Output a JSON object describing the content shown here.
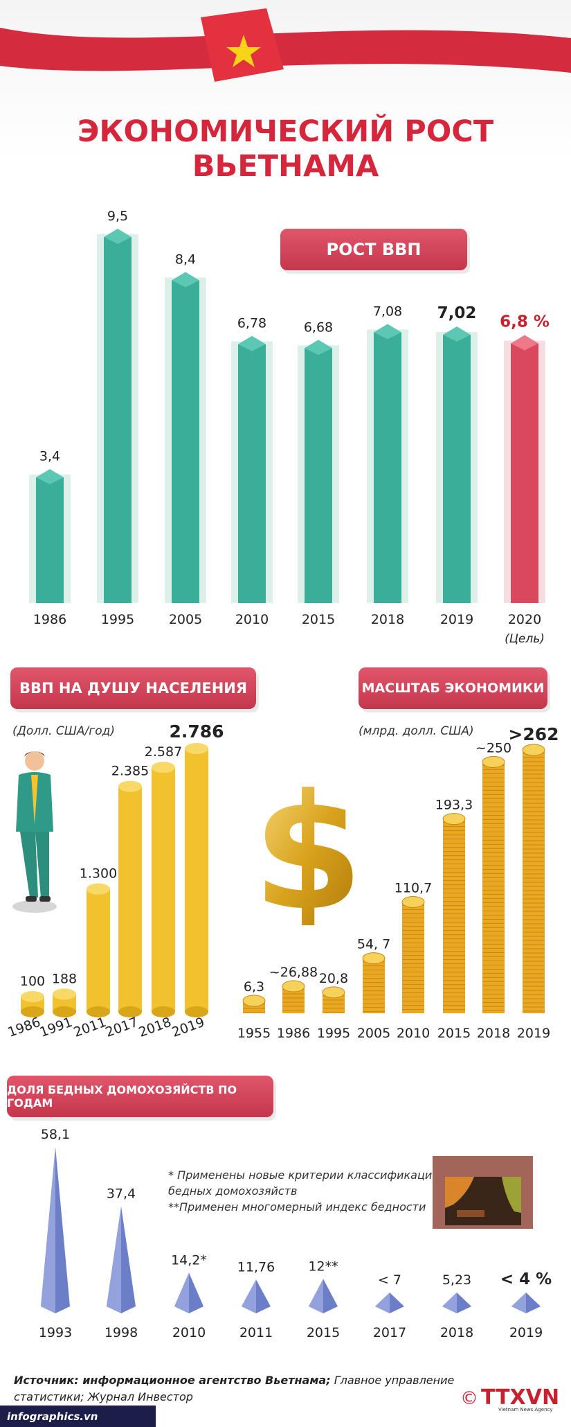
{
  "title": "ЭКОНОМИЧЕСКИЙ РОСТ ВЬЕТНАМА",
  "colors": {
    "teal": "#3aae98",
    "red": "#d9485d",
    "gold": "#f2c12e",
    "blue": "#6c7ec8",
    "title_red": "#d6263c"
  },
  "gdp_section": {
    "heading": "РОСТ ВВП"
  },
  "per_capita_section": {
    "heading": "ВВП НА ДУШУ НАСЕЛЕНИЯ",
    "unit": "(Долл. США/год)"
  },
  "scale_section": {
    "heading": "МАСШТАБ ЭКОНОМИКИ",
    "unit": "(млрд. долл. США)"
  },
  "poverty_section": {
    "heading": "ДОЛЯ БЕДНЫХ ДОМОХОЗЯЙСТВ ПО ГОДАМ",
    "note1": "* Применены новые критерии классификации",
    "note2": "бедных домохозяйств",
    "note3": "**Применен многомерный индекс бедности"
  },
  "chart_data": [
    {
      "type": "bar",
      "title": "РОСТ ВВП",
      "categories": [
        "1986",
        "1995",
        "2005",
        "2010",
        "2015",
        "2018",
        "2019",
        "2020"
      ],
      "category_sublabels": [
        "",
        "",
        "",
        "",
        "",
        "",
        "",
        "(Цель)"
      ],
      "values": [
        3.4,
        9.5,
        8.4,
        6.78,
        6.68,
        7.08,
        7.02,
        6.8
      ],
      "value_labels": [
        "3,4",
        "9,5",
        "8,4",
        "6,78",
        "6,68",
        "7,08",
        "7,02",
        "6,8 %"
      ],
      "highlight": "2020"
    },
    {
      "type": "bar",
      "title": "ВВП НА ДУШУ НАСЕЛЕНИЯ",
      "ylabel": "(Долл. США/год)",
      "categories": [
        "1986",
        "1991",
        "2011",
        "2017",
        "2018",
        "2019"
      ],
      "values": [
        100,
        188,
        1300,
        2385,
        2587,
        2786
      ],
      "value_labels": [
        "100",
        "188",
        "1.300",
        "2.385",
        "2.587",
        "2.786"
      ]
    },
    {
      "type": "bar",
      "title": "МАСШТАБ ЭКОНОМИКИ",
      "ylabel": "(млрд. долл. США)",
      "categories": [
        "1955",
        "1986",
        "1995",
        "2005",
        "2010",
        "2015",
        "2018",
        "2019"
      ],
      "values": [
        6.3,
        26.88,
        20.8,
        54.7,
        110.7,
        193.3,
        250,
        262
      ],
      "value_labels": [
        "6,3",
        "~26,88",
        "20,8",
        "54, 7",
        "110,7",
        "193,3",
        "~250",
        ">262"
      ]
    },
    {
      "type": "bar",
      "title": "ДОЛЯ БЕДНЫХ ДОМОХОЗЯЙСТВ ПО ГОДАМ",
      "categories": [
        "1993",
        "1998",
        "2010",
        "2011",
        "2015",
        "2017",
        "2018",
        "2019"
      ],
      "values": [
        58.1,
        37.4,
        14.2,
        11.76,
        12,
        7,
        5.23,
        4
      ],
      "value_labels": [
        "58,1",
        "37,4",
        "14,2*",
        "11,76",
        "12**",
        "< 7",
        "5,23",
        "< 4 %"
      ]
    }
  ],
  "footer": {
    "source_bold": "Источник: информационное агентство Вьетнама;",
    "source_rest": " Главное управление статистики; Журнал Инвестор",
    "site": "infographics.vn",
    "logo": "TTXVN",
    "logo_sub": "Vietnam News Agency",
    "copyright": "©"
  }
}
